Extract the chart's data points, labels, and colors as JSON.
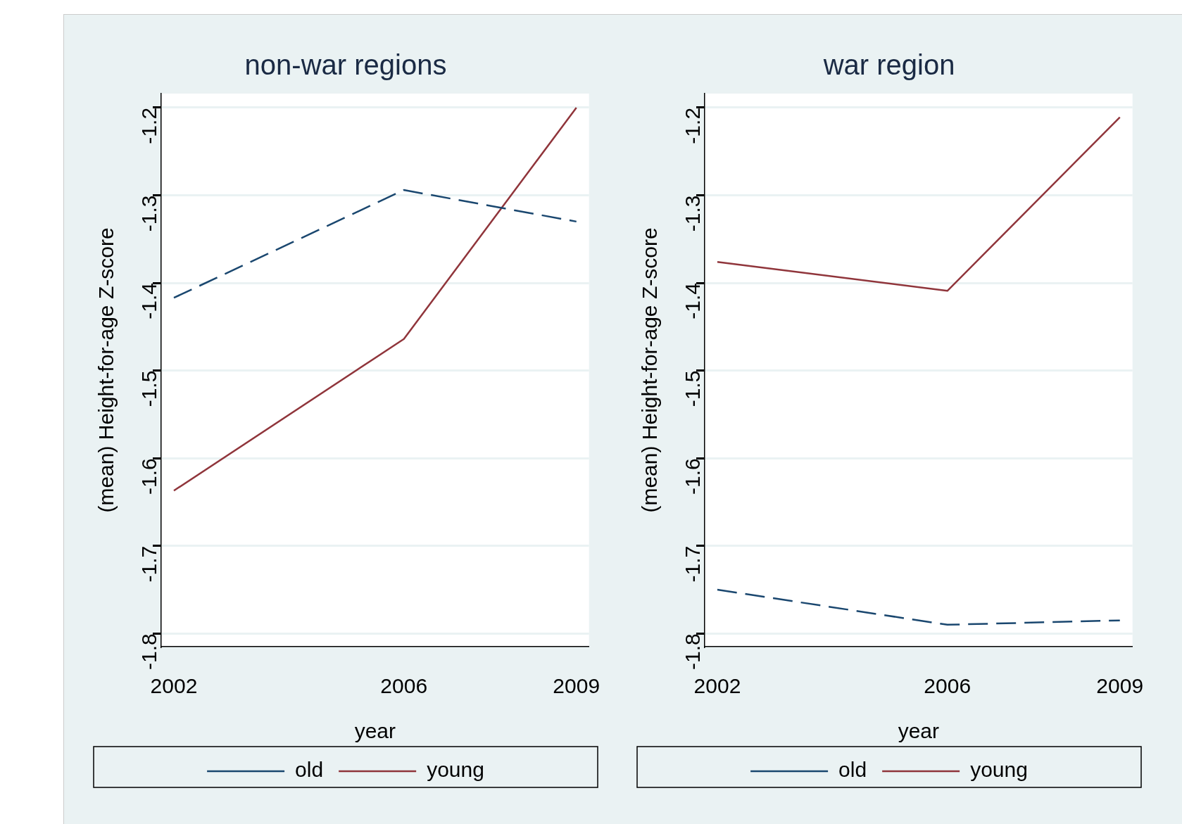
{
  "chart_data": [
    {
      "type": "line",
      "title": "non-war regions",
      "xlabel": "year",
      "ylabel": "(mean) Height-for-age Z-score",
      "x": [
        2002,
        2006,
        2009
      ],
      "series": [
        {
          "name": "old",
          "color": "#1a476f",
          "values": [
            -1.417,
            -1.294,
            -1.33
          ],
          "line_style": "dashed"
        },
        {
          "name": "young",
          "color": "#90353b",
          "values": [
            -1.637,
            -1.464,
            -1.2
          ],
          "line_style": "solid"
        }
      ],
      "xlim": [
        2001.78,
        2009.22
      ],
      "xticks": [
        2002,
        2006,
        2009
      ],
      "ylim": [
        -1.815,
        -1.184
      ],
      "yticks": [
        -1.8,
        -1.7,
        -1.6,
        -1.5,
        -1.4,
        -1.3,
        -1.2
      ],
      "grid": "y",
      "legend": "bottom"
    },
    {
      "type": "line",
      "title": "war region",
      "xlabel": "year",
      "ylabel": "(mean) Height-for-age Z-score",
      "x": [
        2002,
        2006,
        2009
      ],
      "series": [
        {
          "name": "old",
          "color": "#1a476f",
          "values": [
            -1.75,
            -1.79,
            -1.785
          ],
          "line_style": "dashed"
        },
        {
          "name": "young",
          "color": "#90353b",
          "values": [
            -1.376,
            -1.409,
            -1.211
          ],
          "line_style": "solid"
        }
      ],
      "xlim": [
        2001.78,
        2009.22
      ],
      "xticks": [
        2002,
        2006,
        2009
      ],
      "ylim": [
        -1.815,
        -1.184
      ],
      "yticks": [
        -1.8,
        -1.7,
        -1.6,
        -1.5,
        -1.4,
        -1.3,
        -1.2
      ],
      "grid": "y",
      "legend": "bottom"
    }
  ]
}
